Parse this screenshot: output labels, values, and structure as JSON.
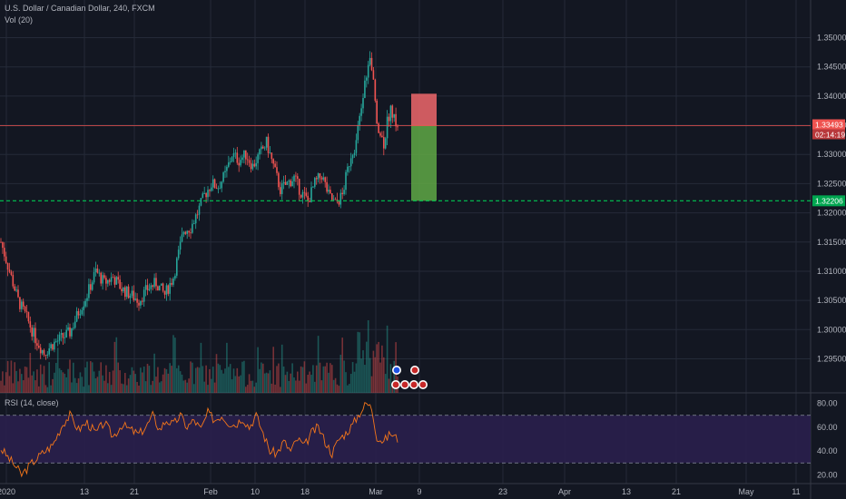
{
  "header": {
    "symbol_line": "U.S. Dollar / Canadian Dollar, 240, FXCM",
    "vol_label": "Vol (20)",
    "rsi_label": "RSI (14, close)"
  },
  "colors": {
    "background": "#131722",
    "grid": "#242a38",
    "up": "#26a69a",
    "down": "#ef5350",
    "price_line": "#ef5350",
    "target_line": "#00c853",
    "rsi_line": "#f5761a",
    "rsi_band": "#2a1f4d",
    "stop_box": "#f0676b",
    "target_box": "#5fa845"
  },
  "chart_data": {
    "type": "candlestick",
    "symbol": "USDCAD",
    "timeframe": "240",
    "ylim": [
      1.2915,
      1.3535
    ],
    "y_ticks": [
      "1.35000",
      "1.34500",
      "1.34000",
      "1.33500",
      "1.33000",
      "1.32500",
      "1.32000",
      "1.31500",
      "1.31000",
      "1.30500",
      "1.30000",
      "1.29500"
    ],
    "x_ticks": [
      "2020",
      "13",
      "21",
      "Feb",
      "10",
      "18",
      "Mar",
      "9",
      "23",
      "Apr",
      "13",
      "21",
      "May",
      "11"
    ],
    "current_price": "1.33493",
    "countdown": "02:14:19",
    "target_level": "1.32206",
    "position": {
      "entry": 1.33493,
      "stop": 1.3404,
      "target": 1.32206
    },
    "close_path": [
      [
        0,
        1.315
      ],
      [
        5,
        1.31
      ],
      [
        10,
        1.305
      ],
      [
        15,
        1.302
      ],
      [
        20,
        1.2985
      ],
      [
        25,
        1.296
      ],
      [
        30,
        1.2975
      ],
      [
        35,
        1.2985
      ],
      [
        40,
        1.2995
      ],
      [
        45,
        1.303
      ],
      [
        50,
        1.306
      ],
      [
        55,
        1.31
      ],
      [
        60,
        1.308
      ],
      [
        65,
        1.309
      ],
      [
        70,
        1.307
      ],
      [
        75,
        1.306
      ],
      [
        80,
        1.305
      ],
      [
        85,
        1.307
      ],
      [
        90,
        1.308
      ],
      [
        95,
        1.306
      ],
      [
        100,
        1.309
      ],
      [
        103,
        1.313
      ],
      [
        106,
        1.317
      ],
      [
        110,
        1.3175
      ],
      [
        114,
        1.32
      ],
      [
        118,
        1.323
      ],
      [
        122,
        1.325
      ],
      [
        126,
        1.3245
      ],
      [
        130,
        1.3265
      ],
      [
        134,
        1.33
      ],
      [
        138,
        1.329
      ],
      [
        142,
        1.33
      ],
      [
        146,
        1.328
      ],
      [
        150,
        1.33
      ],
      [
        154,
        1.332
      ],
      [
        158,
        1.328
      ],
      [
        162,
        1.324
      ],
      [
        166,
        1.325
      ],
      [
        170,
        1.326
      ],
      [
        174,
        1.3235
      ],
      [
        178,
        1.322
      ],
      [
        182,
        1.325
      ],
      [
        186,
        1.3265
      ],
      [
        190,
        1.323
      ],
      [
        194,
        1.3215
      ],
      [
        198,
        1.323
      ],
      [
        200,
        1.326
      ],
      [
        203,
        1.33
      ],
      [
        206,
        1.332
      ],
      [
        209,
        1.338
      ],
      [
        212,
        1.344
      ],
      [
        214,
        1.346
      ],
      [
        216,
        1.342
      ],
      [
        218,
        1.336
      ],
      [
        220,
        1.3335
      ],
      [
        222,
        1.332
      ],
      [
        224,
        1.3355
      ],
      [
        226,
        1.338
      ],
      [
        228,
        1.336
      ],
      [
        230,
        1.335
      ]
    ],
    "rsi": {
      "ylim": [
        15,
        85
      ],
      "y_ticks": [
        "80.00",
        "60.00",
        "40.00",
        "20.00"
      ],
      "band": [
        30,
        70
      ],
      "path": [
        [
          0,
          42
        ],
        [
          8,
          28
        ],
        [
          12,
          20
        ],
        [
          18,
          30
        ],
        [
          24,
          38
        ],
        [
          30,
          45
        ],
        [
          36,
          63
        ],
        [
          40,
          70
        ],
        [
          45,
          58
        ],
        [
          50,
          64
        ],
        [
          55,
          55
        ],
        [
          60,
          64
        ],
        [
          65,
          52
        ],
        [
          70,
          62
        ],
        [
          75,
          58
        ],
        [
          80,
          54
        ],
        [
          85,
          62
        ],
        [
          88,
          70
        ],
        [
          92,
          58
        ],
        [
          96,
          66
        ],
        [
          100,
          62
        ],
        [
          104,
          70
        ],
        [
          108,
          60
        ],
        [
          112,
          66
        ],
        [
          116,
          58
        ],
        [
          120,
          72
        ],
        [
          124,
          66
        ],
        [
          128,
          70
        ],
        [
          132,
          64
        ],
        [
          136,
          62
        ],
        [
          140,
          68
        ],
        [
          144,
          60
        ],
        [
          148,
          70
        ],
        [
          152,
          55
        ],
        [
          156,
          40
        ],
        [
          160,
          38
        ],
        [
          164,
          48
        ],
        [
          168,
          40
        ],
        [
          172,
          50
        ],
        [
          176,
          44
        ],
        [
          180,
          55
        ],
        [
          184,
          60
        ],
        [
          188,
          48
        ],
        [
          192,
          38
        ],
        [
          196,
          50
        ],
        [
          200,
          55
        ],
        [
          204,
          62
        ],
        [
          208,
          72
        ],
        [
          212,
          80
        ],
        [
          215,
          76
        ],
        [
          218,
          52
        ],
        [
          222,
          48
        ],
        [
          226,
          55
        ],
        [
          230,
          50
        ]
      ]
    }
  }
}
